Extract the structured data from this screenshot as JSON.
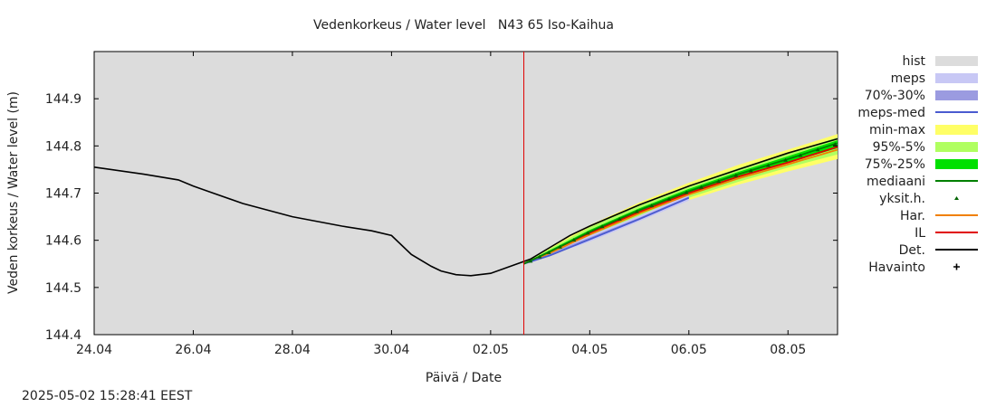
{
  "chart_data": {
    "type": "line",
    "title": "Vedenkorkeus / Water level   N43 65 Iso-Kaihua",
    "xlabel": "Päivä / Date",
    "ylabel": "Veden korkeus / Water level (m)",
    "x_ticks": [
      "24.04",
      "26.04",
      "28.04",
      "30.04",
      "02.05",
      "04.05",
      "06.05",
      "08.05"
    ],
    "y_ticks": [
      "144.4",
      "144.5",
      "144.6",
      "144.7",
      "144.8",
      "144.9"
    ],
    "xlim": [
      0,
      15
    ],
    "ylim": [
      144.4,
      145.0
    ],
    "now_x": 8.67,
    "grid": false,
    "legend_position": "right",
    "legend": [
      {
        "key": "hist",
        "label": "hist",
        "kind": "box",
        "color": "#dcdcdc"
      },
      {
        "key": "meps",
        "label": "meps",
        "kind": "box",
        "color": "#c8c8f5"
      },
      {
        "key": "p7030",
        "label": "70%-30%",
        "kind": "box",
        "color": "#9b9be0"
      },
      {
        "key": "mepsmed",
        "label": "meps-med",
        "kind": "line",
        "color": "#4a5bd0"
      },
      {
        "key": "minmax",
        "label": "min-max",
        "kind": "box",
        "color": "#ffff66"
      },
      {
        "key": "p955",
        "label": "95%-5%",
        "kind": "box",
        "color": "#b0ff60"
      },
      {
        "key": "p7525",
        "label": "75%-25%",
        "kind": "box",
        "color": "#00e000"
      },
      {
        "key": "median",
        "label": "mediaani",
        "kind": "line",
        "color": "#008000"
      },
      {
        "key": "single",
        "label": "yksit.h.",
        "kind": "dot",
        "color": "#006400"
      },
      {
        "key": "har",
        "label": "Har.",
        "kind": "line",
        "color": "#f08000"
      },
      {
        "key": "il",
        "label": "IL",
        "kind": "line",
        "color": "#e00000"
      },
      {
        "key": "det",
        "label": "Det.",
        "kind": "line",
        "color": "#000000"
      },
      {
        "key": "obs",
        "label": "Havainto",
        "kind": "plus",
        "color": "#000000"
      }
    ],
    "series": [
      {
        "key": "det",
        "color": "#000000",
        "x": [
          0,
          1.0,
          1.7,
          2.0,
          2.4,
          3.0,
          4.0,
          5.0,
          5.6,
          6.0,
          6.4,
          6.8,
          7.0,
          7.3,
          7.6,
          8.0,
          8.4,
          8.8,
          9.2,
          9.6,
          10,
          11,
          12,
          13,
          14,
          15
        ],
        "y": [
          144.755,
          144.74,
          144.728,
          144.715,
          144.7,
          144.678,
          144.65,
          144.63,
          144.62,
          144.61,
          144.57,
          144.545,
          144.535,
          144.527,
          144.525,
          144.53,
          144.545,
          144.56,
          144.585,
          144.61,
          144.63,
          144.675,
          144.715,
          144.75,
          144.785,
          144.815
        ]
      },
      {
        "key": "il",
        "color": "#e00000",
        "x": [
          8.67,
          9.2,
          10,
          11,
          12,
          13,
          14,
          15
        ],
        "y": [
          144.55,
          144.575,
          144.615,
          144.66,
          144.7,
          144.735,
          144.765,
          144.798
        ]
      },
      {
        "key": "har",
        "color": "#f08000",
        "x": [
          8.67,
          9.2,
          10,
          11,
          12,
          13,
          14,
          15
        ],
        "y": [
          144.55,
          144.573,
          144.612,
          144.657,
          144.697,
          144.731,
          144.761,
          144.792
        ]
      },
      {
        "key": "mepsmed",
        "color": "#4a5bd0",
        "x": [
          8.67,
          9.2,
          10,
          11,
          12
        ],
        "y": [
          144.55,
          144.568,
          144.602,
          144.645,
          144.69
        ]
      },
      {
        "key": "median",
        "color": "#008000",
        "x": [
          8.67,
          9.2,
          10,
          11,
          12,
          13,
          14,
          15
        ],
        "y": [
          144.55,
          144.576,
          144.618,
          144.664,
          144.704,
          144.74,
          144.772,
          144.806
        ]
      }
    ],
    "bands": [
      {
        "key": "minmax",
        "color": "#ffff66",
        "x": [
          8.67,
          10,
          11,
          12,
          13,
          14,
          15
        ],
        "low": [
          144.548,
          144.6,
          144.645,
          144.685,
          144.718,
          144.746,
          144.772
        ],
        "high": [
          144.552,
          144.632,
          144.68,
          144.722,
          144.76,
          144.792,
          144.825
        ]
      },
      {
        "key": "p955",
        "color": "#b0ff60",
        "x": [
          8.67,
          10,
          11,
          12,
          13,
          14,
          15
        ],
        "low": [
          144.548,
          144.605,
          144.65,
          144.69,
          144.724,
          144.754,
          144.782
        ],
        "high": [
          144.552,
          144.628,
          144.675,
          144.716,
          144.753,
          144.785,
          144.818
        ]
      },
      {
        "key": "p7525",
        "color": "#00e000",
        "x": [
          8.67,
          10,
          11,
          12,
          13,
          14,
          15
        ],
        "low": [
          144.549,
          144.612,
          144.657,
          144.698,
          144.733,
          144.764,
          144.795
        ],
        "high": [
          144.551,
          144.622,
          144.668,
          144.709,
          144.745,
          144.778,
          144.812
        ]
      },
      {
        "key": "meps",
        "color": "#c8c8f5",
        "x": [
          8.67,
          10,
          11,
          12
        ],
        "low": [
          144.549,
          144.597,
          144.64,
          144.684
        ],
        "high": [
          144.551,
          144.61,
          144.652,
          144.697
        ]
      },
      {
        "key": "p7030",
        "color": "#9b9be0",
        "x": [
          8.67,
          10,
          11,
          12
        ],
        "low": [
          144.549,
          144.6,
          144.643,
          144.688
        ],
        "high": [
          144.551,
          144.606,
          144.648,
          144.693
        ]
      }
    ]
  },
  "timestamp": "2025-05-02 15:28:41 EEST"
}
